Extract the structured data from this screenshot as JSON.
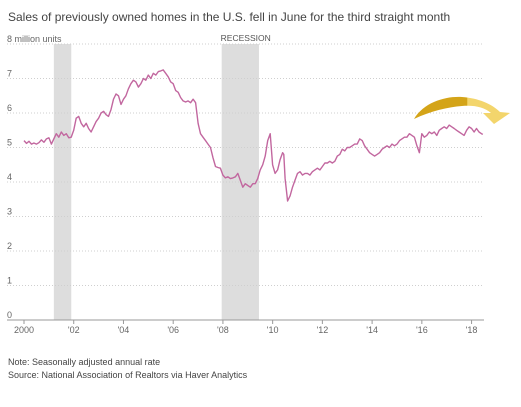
{
  "chart_data": {
    "type": "line",
    "title": "Sales of previously owned homes in the U.S. fell in June for the third straight month",
    "y_unit_label": "8 million units",
    "ylim": [
      0,
      8
    ],
    "y_ticks": [
      "0",
      "1",
      "2",
      "3",
      "4",
      "5",
      "6",
      "7"
    ],
    "xlim": [
      2000.0,
      2018.5
    ],
    "x_ticks": [
      {
        "year": 2000,
        "label": "2000"
      },
      {
        "year": 2002,
        "label": "'02"
      },
      {
        "year": 2004,
        "label": "'04"
      },
      {
        "year": 2006,
        "label": "'06"
      },
      {
        "year": 2008,
        "label": "'08"
      },
      {
        "year": 2010,
        "label": "'10"
      },
      {
        "year": 2012,
        "label": "'12"
      },
      {
        "year": 2014,
        "label": "'14"
      },
      {
        "year": 2016,
        "label": "'16"
      },
      {
        "year": 2018,
        "label": "'18"
      }
    ],
    "grid": "horizontal",
    "recessions": [
      {
        "start": 2001.2,
        "end": 2001.9,
        "label": ""
      },
      {
        "start": 2007.95,
        "end": 2009.45,
        "label": "RECESSION"
      }
    ],
    "series": [
      {
        "color": "#c2679f",
        "points": [
          [
            2000.0,
            5.2
          ],
          [
            2000.1,
            5.12
          ],
          [
            2000.2,
            5.18
          ],
          [
            2000.3,
            5.1
          ],
          [
            2000.4,
            5.13
          ],
          [
            2000.5,
            5.1
          ],
          [
            2000.6,
            5.14
          ],
          [
            2000.7,
            5.22
          ],
          [
            2000.8,
            5.15
          ],
          [
            2000.9,
            5.25
          ],
          [
            2001.0,
            5.28
          ],
          [
            2001.1,
            5.1
          ],
          [
            2001.2,
            5.25
          ],
          [
            2001.3,
            5.4
          ],
          [
            2001.4,
            5.3
          ],
          [
            2001.5,
            5.45
          ],
          [
            2001.6,
            5.35
          ],
          [
            2001.7,
            5.4
          ],
          [
            2001.8,
            5.28
          ],
          [
            2001.9,
            5.3
          ],
          [
            2002.0,
            5.5
          ],
          [
            2002.1,
            5.85
          ],
          [
            2002.2,
            5.9
          ],
          [
            2002.3,
            5.7
          ],
          [
            2002.4,
            5.6
          ],
          [
            2002.5,
            5.7
          ],
          [
            2002.6,
            5.55
          ],
          [
            2002.7,
            5.45
          ],
          [
            2002.8,
            5.6
          ],
          [
            2002.9,
            5.75
          ],
          [
            2003.0,
            5.85
          ],
          [
            2003.1,
            6.0
          ],
          [
            2003.2,
            6.05
          ],
          [
            2003.3,
            5.95
          ],
          [
            2003.4,
            5.9
          ],
          [
            2003.5,
            6.1
          ],
          [
            2003.6,
            6.4
          ],
          [
            2003.7,
            6.55
          ],
          [
            2003.8,
            6.5
          ],
          [
            2003.9,
            6.25
          ],
          [
            2004.0,
            6.4
          ],
          [
            2004.1,
            6.5
          ],
          [
            2004.2,
            6.7
          ],
          [
            2004.3,
            6.85
          ],
          [
            2004.4,
            6.95
          ],
          [
            2004.5,
            6.9
          ],
          [
            2004.6,
            6.75
          ],
          [
            2004.7,
            6.85
          ],
          [
            2004.8,
            7.0
          ],
          [
            2004.9,
            6.95
          ],
          [
            2005.0,
            7.1
          ],
          [
            2005.1,
            7.0
          ],
          [
            2005.2,
            7.15
          ],
          [
            2005.3,
            7.1
          ],
          [
            2005.4,
            7.2
          ],
          [
            2005.5,
            7.22
          ],
          [
            2005.6,
            7.25
          ],
          [
            2005.7,
            7.15
          ],
          [
            2005.8,
            7.05
          ],
          [
            2005.9,
            6.9
          ],
          [
            2006.0,
            6.85
          ],
          [
            2006.1,
            6.65
          ],
          [
            2006.2,
            6.6
          ],
          [
            2006.3,
            6.45
          ],
          [
            2006.4,
            6.35
          ],
          [
            2006.5,
            6.32
          ],
          [
            2006.6,
            6.35
          ],
          [
            2006.7,
            6.3
          ],
          [
            2006.8,
            6.4
          ],
          [
            2006.9,
            6.3
          ],
          [
            2007.0,
            5.7
          ],
          [
            2007.1,
            5.4
          ],
          [
            2007.2,
            5.3
          ],
          [
            2007.3,
            5.2
          ],
          [
            2007.4,
            5.1
          ],
          [
            2007.5,
            5.0
          ],
          [
            2007.6,
            4.7
          ],
          [
            2007.7,
            4.45
          ],
          [
            2007.8,
            4.42
          ],
          [
            2007.9,
            4.4
          ],
          [
            2008.0,
            4.2
          ],
          [
            2008.1,
            4.12
          ],
          [
            2008.2,
            4.15
          ],
          [
            2008.3,
            4.1
          ],
          [
            2008.4,
            4.12
          ],
          [
            2008.5,
            4.15
          ],
          [
            2008.6,
            4.25
          ],
          [
            2008.7,
            4.05
          ],
          [
            2008.8,
            3.85
          ],
          [
            2008.9,
            3.95
          ],
          [
            2009.0,
            3.9
          ],
          [
            2009.1,
            3.85
          ],
          [
            2009.2,
            3.95
          ],
          [
            2009.3,
            3.95
          ],
          [
            2009.4,
            4.1
          ],
          [
            2009.5,
            4.35
          ],
          [
            2009.6,
            4.5
          ],
          [
            2009.7,
            4.75
          ],
          [
            2009.8,
            5.2
          ],
          [
            2009.9,
            5.4
          ],
          [
            2010.0,
            4.5
          ],
          [
            2010.1,
            4.25
          ],
          [
            2010.2,
            4.35
          ],
          [
            2010.3,
            4.65
          ],
          [
            2010.4,
            4.85
          ],
          [
            2010.45,
            4.8
          ],
          [
            2010.5,
            4.1
          ],
          [
            2010.6,
            3.45
          ],
          [
            2010.7,
            3.6
          ],
          [
            2010.8,
            3.85
          ],
          [
            2010.9,
            4.05
          ],
          [
            2011.0,
            4.25
          ],
          [
            2011.1,
            4.3
          ],
          [
            2011.2,
            4.2
          ],
          [
            2011.3,
            4.25
          ],
          [
            2011.4,
            4.25
          ],
          [
            2011.5,
            4.2
          ],
          [
            2011.6,
            4.3
          ],
          [
            2011.7,
            4.35
          ],
          [
            2011.8,
            4.4
          ],
          [
            2011.9,
            4.35
          ],
          [
            2012.0,
            4.45
          ],
          [
            2012.1,
            4.55
          ],
          [
            2012.2,
            4.55
          ],
          [
            2012.3,
            4.6
          ],
          [
            2012.4,
            4.55
          ],
          [
            2012.5,
            4.6
          ],
          [
            2012.6,
            4.75
          ],
          [
            2012.7,
            4.8
          ],
          [
            2012.8,
            4.95
          ],
          [
            2012.9,
            4.9
          ],
          [
            2013.0,
            5.0
          ],
          [
            2013.1,
            5.0
          ],
          [
            2013.2,
            5.05
          ],
          [
            2013.3,
            5.1
          ],
          [
            2013.4,
            5.1
          ],
          [
            2013.5,
            5.25
          ],
          [
            2013.6,
            5.2
          ],
          [
            2013.7,
            5.05
          ],
          [
            2013.8,
            4.95
          ],
          [
            2013.9,
            4.85
          ],
          [
            2014.0,
            4.8
          ],
          [
            2014.1,
            4.75
          ],
          [
            2014.2,
            4.8
          ],
          [
            2014.3,
            4.85
          ],
          [
            2014.4,
            4.95
          ],
          [
            2014.5,
            5.0
          ],
          [
            2014.6,
            5.05
          ],
          [
            2014.7,
            5.0
          ],
          [
            2014.8,
            5.1
          ],
          [
            2014.9,
            5.05
          ],
          [
            2015.0,
            5.1
          ],
          [
            2015.1,
            5.2
          ],
          [
            2015.2,
            5.25
          ],
          [
            2015.3,
            5.3
          ],
          [
            2015.4,
            5.3
          ],
          [
            2015.5,
            5.4
          ],
          [
            2015.6,
            5.35
          ],
          [
            2015.7,
            5.3
          ],
          [
            2015.8,
            5.05
          ],
          [
            2015.9,
            4.85
          ],
          [
            2016.0,
            5.4
          ],
          [
            2016.1,
            5.3
          ],
          [
            2016.2,
            5.35
          ],
          [
            2016.3,
            5.45
          ],
          [
            2016.4,
            5.4
          ],
          [
            2016.5,
            5.45
          ],
          [
            2016.6,
            5.35
          ],
          [
            2016.7,
            5.5
          ],
          [
            2016.8,
            5.55
          ],
          [
            2016.9,
            5.6
          ],
          [
            2017.0,
            5.55
          ],
          [
            2017.1,
            5.65
          ],
          [
            2017.2,
            5.6
          ],
          [
            2017.3,
            5.55
          ],
          [
            2017.4,
            5.5
          ],
          [
            2017.5,
            5.45
          ],
          [
            2017.6,
            5.4
          ],
          [
            2017.7,
            5.35
          ],
          [
            2017.8,
            5.5
          ],
          [
            2017.9,
            5.6
          ],
          [
            2018.0,
            5.55
          ],
          [
            2018.1,
            5.45
          ],
          [
            2018.2,
            5.55
          ],
          [
            2018.3,
            5.45
          ],
          [
            2018.4,
            5.4
          ],
          [
            2018.45,
            5.38
          ]
        ]
      }
    ]
  },
  "notes": {
    "note": "Note: Seasonally adjusted annual rate",
    "source": "Source: National Association of Realtors via Haver Analytics"
  },
  "colors": {
    "line": "#c2679f",
    "recession": "#dddddd",
    "arrow_gold": "#d4a418",
    "arrow_yellow": "#f3d56c"
  },
  "icons": {
    "annotation_arrow": "curved-arrow-icon"
  }
}
